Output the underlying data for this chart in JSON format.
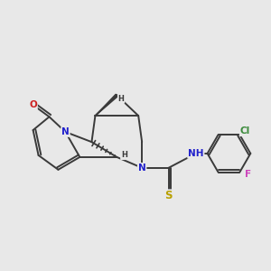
{
  "bg_color": "#e8e8e8",
  "bond_color": "#3a3a3a",
  "N_color": "#2020cc",
  "O_color": "#cc2020",
  "S_color": "#b8a000",
  "Cl_color": "#3a8a3a",
  "F_color": "#cc44bb",
  "line_width": 1.4,
  "figsize": [
    3.0,
    3.0
  ],
  "dpi": 100,
  "xlim": [
    -3.2,
    4.2
  ],
  "ylim": [
    -2.2,
    2.2
  ]
}
